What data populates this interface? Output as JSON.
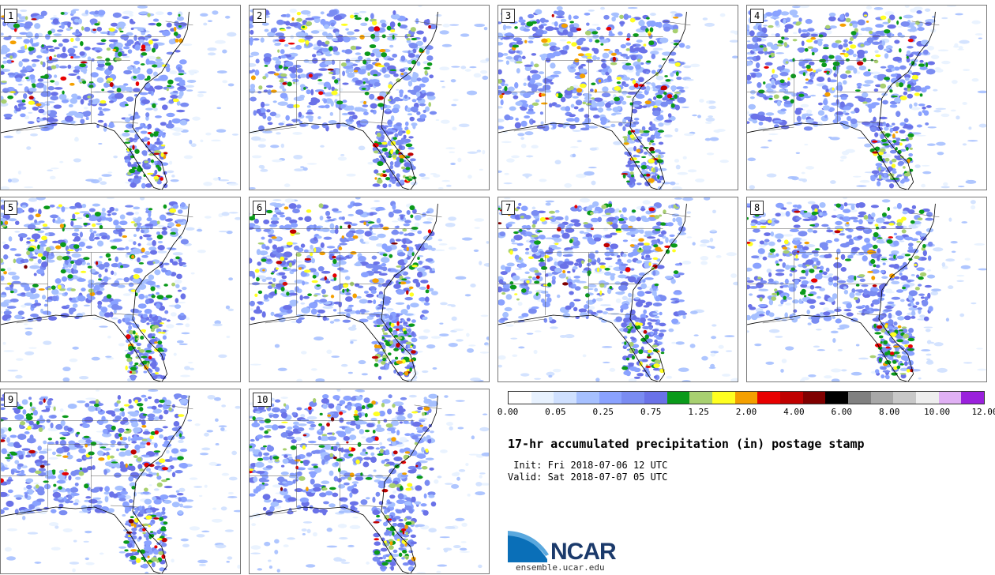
{
  "panels": [
    {
      "label": "1"
    },
    {
      "label": "2"
    },
    {
      "label": "3"
    },
    {
      "label": "4"
    },
    {
      "label": "5"
    },
    {
      "label": "6"
    },
    {
      "label": "7"
    },
    {
      "label": "8"
    },
    {
      "label": "9"
    },
    {
      "label": "10"
    }
  ],
  "legend": {
    "colors": [
      "#ffffff",
      "#e8f2ff",
      "#cfe0ff",
      "#a6c0ff",
      "#8aa2ff",
      "#7a8cf2",
      "#6a72e8",
      "#0a9a1a",
      "#a8d070",
      "#ffff20",
      "#f4a000",
      "#e80000",
      "#c00000",
      "#800000",
      "#000000",
      "#808080",
      "#a8a8a8",
      "#c8c8c8",
      "#eeeeee",
      "#e0b0f4",
      "#9a20dc"
    ],
    "tick_labels": [
      "0.00",
      "0.05",
      "0.25",
      "0.75",
      "1.25",
      "2.00",
      "4.00",
      "6.00",
      "8.00",
      "10.00",
      "12.00"
    ]
  },
  "title": "17-hr accumulated precipitation (in) postage stamp",
  "init_line": " Init: Fri 2018-07-06 12 UTC",
  "valid_line": "Valid: Sat 2018-07-07 05 UTC",
  "logo": {
    "text": "NCAR",
    "url": "ensemble.ucar.edu"
  }
}
